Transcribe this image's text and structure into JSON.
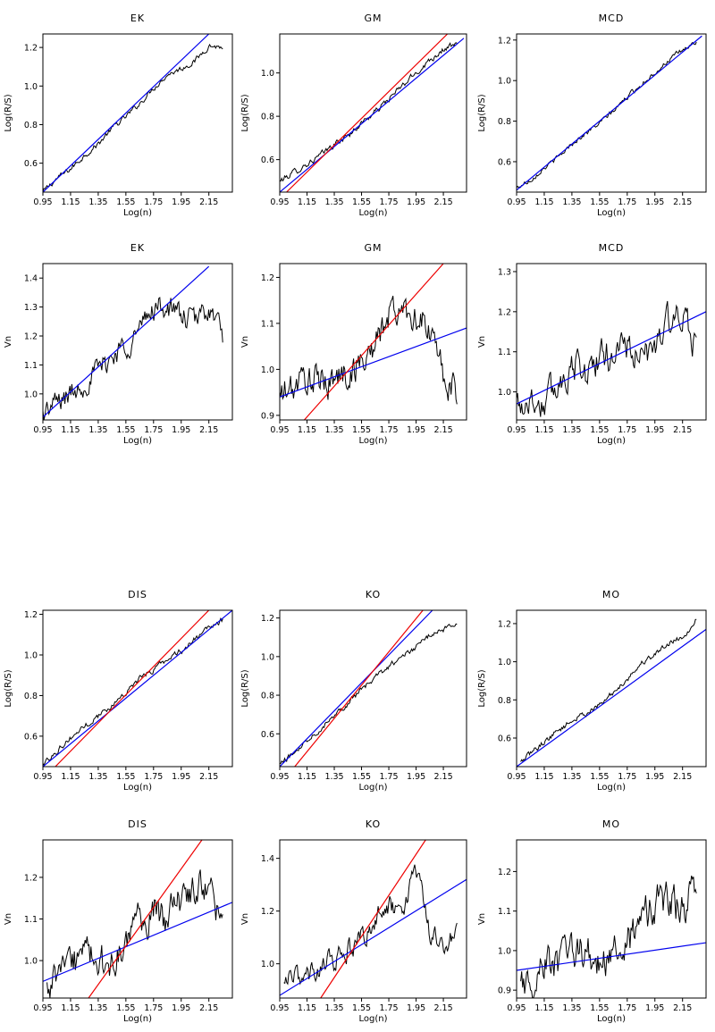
{
  "colors": {
    "fit_line": "#0000ee",
    "reference_line": "#ee0000",
    "data_line": "#000000"
  },
  "chart_data": [
    {
      "type": "line",
      "title": "EK",
      "xlabel": "Log(n)",
      "ylabel": "Log(R/S)",
      "xlim": [
        0.95,
        2.32
      ],
      "ylim": [
        0.45,
        1.27
      ],
      "xticks": [
        "0.95",
        "1.15",
        "1.35",
        "1.55",
        "1.75",
        "1.95",
        "2.15"
      ],
      "yticks": [
        "0.6",
        "0.8",
        "1.0",
        "1.2"
      ],
      "series": [
        {
          "role": "data",
          "x": [
            0.95,
            1.05,
            1.15,
            1.25,
            1.35,
            1.45,
            1.55,
            1.65,
            1.75,
            1.85,
            1.95,
            2.05,
            2.15,
            2.25
          ],
          "y": [
            0.45,
            0.52,
            0.57,
            0.64,
            0.7,
            0.78,
            0.84,
            0.91,
            0.99,
            1.06,
            1.09,
            1.13,
            1.21,
            1.2
          ],
          "noise": 0.012
        },
        {
          "role": "fit",
          "color": "blue",
          "x": [
            0.95,
            2.15
          ],
          "y": [
            0.45,
            1.27
          ]
        }
      ]
    },
    {
      "type": "line",
      "title": "GM",
      "xlabel": "Log(n)",
      "ylabel": "Log(R/S)",
      "xlim": [
        0.95,
        2.32
      ],
      "ylim": [
        0.45,
        1.18
      ],
      "xticks": [
        "0.95",
        "1.15",
        "1.35",
        "1.55",
        "1.75",
        "1.95",
        "2.15"
      ],
      "yticks": [
        "0.6",
        "0.8",
        "1.0"
      ],
      "series": [
        {
          "role": "data",
          "x": [
            0.95,
            1.05,
            1.15,
            1.25,
            1.35,
            1.45,
            1.55,
            1.65,
            1.75,
            1.85,
            1.95,
            2.05,
            2.15,
            2.25
          ],
          "y": [
            0.5,
            0.54,
            0.58,
            0.62,
            0.67,
            0.71,
            0.77,
            0.82,
            0.88,
            0.94,
            1.0,
            1.06,
            1.11,
            1.13
          ],
          "noise": 0.012
        },
        {
          "role": "fit",
          "color": "blue",
          "x": [
            0.95,
            2.3
          ],
          "y": [
            0.45,
            1.16
          ]
        },
        {
          "role": "reference",
          "color": "red",
          "x": [
            1.0,
            2.18
          ],
          "y": [
            0.45,
            1.18
          ]
        }
      ]
    },
    {
      "type": "line",
      "title": "MCD",
      "xlabel": "Log(n)",
      "ylabel": "Log(R/S)",
      "xlim": [
        0.95,
        2.32
      ],
      "ylim": [
        0.45,
        1.23
      ],
      "xticks": [
        "0.95",
        "1.15",
        "1.35",
        "1.55",
        "1.75",
        "1.95",
        "2.15"
      ],
      "yticks": [
        "0.6",
        "0.8",
        "1.0",
        "1.2"
      ],
      "series": [
        {
          "role": "data",
          "x": [
            0.95,
            1.05,
            1.15,
            1.25,
            1.35,
            1.45,
            1.55,
            1.65,
            1.75,
            1.85,
            1.95,
            2.05,
            2.15,
            2.25
          ],
          "y": [
            0.47,
            0.51,
            0.57,
            0.62,
            0.69,
            0.74,
            0.79,
            0.85,
            0.92,
            0.98,
            1.04,
            1.1,
            1.15,
            1.19
          ],
          "noise": 0.01
        },
        {
          "role": "fit",
          "color": "blue",
          "x": [
            0.95,
            2.29
          ],
          "y": [
            0.46,
            1.22
          ]
        }
      ]
    },
    {
      "type": "line",
      "title": "EK",
      "xlabel": "Log(n)",
      "ylabel": "Vn",
      "xlim": [
        0.95,
        2.32
      ],
      "ylim": [
        0.91,
        1.45
      ],
      "xticks": [
        "0.95",
        "1.15",
        "1.35",
        "1.55",
        "1.75",
        "1.95",
        "2.15"
      ],
      "yticks": [
        "1.0",
        "1.1",
        "1.2",
        "1.3",
        "1.4"
      ],
      "series": [
        {
          "role": "data",
          "x": [
            0.95,
            1.05,
            1.15,
            1.25,
            1.35,
            1.45,
            1.55,
            1.65,
            1.75,
            1.85,
            1.95,
            2.05,
            2.15,
            2.25
          ],
          "y": [
            0.93,
            0.97,
            1.0,
            1.04,
            1.08,
            1.13,
            1.17,
            1.22,
            1.3,
            1.3,
            1.27,
            1.25,
            1.3,
            1.2
          ],
          "noise": 0.035
        },
        {
          "role": "fit",
          "color": "blue",
          "x": [
            0.95,
            2.15
          ],
          "y": [
            0.92,
            1.44
          ]
        }
      ]
    },
    {
      "type": "line",
      "title": "GM",
      "xlabel": "Log(n)",
      "ylabel": "Vn",
      "xlim": [
        0.95,
        2.32
      ],
      "ylim": [
        0.89,
        1.23
      ],
      "xticks": [
        "0.95",
        "1.15",
        "1.35",
        "1.55",
        "1.75",
        "1.95",
        "2.15"
      ],
      "yticks": [
        "0.9",
        "1.0",
        "1.1",
        "1.2"
      ],
      "series": [
        {
          "role": "data",
          "x": [
            0.95,
            1.05,
            1.15,
            1.25,
            1.35,
            1.45,
            1.55,
            1.65,
            1.75,
            1.85,
            1.95,
            2.05,
            2.15,
            2.25
          ],
          "y": [
            0.94,
            0.96,
            0.98,
            0.97,
            0.98,
            0.99,
            1.02,
            1.05,
            1.12,
            1.13,
            1.12,
            1.08,
            0.99,
            0.94
          ],
          "noise": 0.03
        },
        {
          "role": "fit",
          "color": "blue",
          "x": [
            0.95,
            2.32
          ],
          "y": [
            0.94,
            1.09
          ]
        },
        {
          "role": "reference",
          "color": "red",
          "x": [
            1.13,
            2.15
          ],
          "y": [
            0.89,
            1.23
          ]
        }
      ]
    },
    {
      "type": "line",
      "title": "MCD",
      "xlabel": "Log(n)",
      "ylabel": "Vn",
      "xlim": [
        0.95,
        2.32
      ],
      "ylim": [
        0.93,
        1.32
      ],
      "xticks": [
        "0.95",
        "1.15",
        "1.35",
        "1.55",
        "1.75",
        "1.95",
        "2.15"
      ],
      "yticks": [
        "1.0",
        "1.1",
        "1.2",
        "1.3"
      ],
      "series": [
        {
          "role": "data",
          "x": [
            0.95,
            1.05,
            1.15,
            1.25,
            1.35,
            1.45,
            1.55,
            1.65,
            1.75,
            1.85,
            1.95,
            2.05,
            2.15,
            2.25
          ],
          "y": [
            0.97,
            0.98,
            0.97,
            1.02,
            1.07,
            1.05,
            1.08,
            1.1,
            1.12,
            1.07,
            1.12,
            1.18,
            1.17,
            1.12
          ],
          "noise": 0.035
        },
        {
          "role": "fit",
          "color": "blue",
          "x": [
            0.95,
            2.32
          ],
          "y": [
            0.97,
            1.2
          ]
        }
      ]
    },
    {
      "type": "line",
      "title": "DIS",
      "xlabel": "Log(n)",
      "ylabel": "Log(R/S)",
      "xlim": [
        0.95,
        2.32
      ],
      "ylim": [
        0.45,
        1.22
      ],
      "xticks": [
        "0.95",
        "1.15",
        "1.35",
        "1.55",
        "1.75",
        "1.95",
        "2.15"
      ],
      "yticks": [
        "0.6",
        "0.8",
        "1.0",
        "1.2"
      ],
      "series": [
        {
          "role": "data",
          "x": [
            0.95,
            1.05,
            1.15,
            1.25,
            1.35,
            1.45,
            1.55,
            1.65,
            1.75,
            1.85,
            1.95,
            2.05,
            2.15,
            2.25
          ],
          "y": [
            0.46,
            0.53,
            0.59,
            0.65,
            0.7,
            0.75,
            0.82,
            0.88,
            0.93,
            0.98,
            1.02,
            1.08,
            1.13,
            1.17
          ],
          "noise": 0.012
        },
        {
          "role": "fit",
          "color": "blue",
          "x": [
            0.95,
            2.32
          ],
          "y": [
            0.45,
            1.22
          ]
        },
        {
          "role": "reference",
          "color": "red",
          "x": [
            1.04,
            2.15
          ],
          "y": [
            0.45,
            1.22
          ]
        }
      ]
    },
    {
      "type": "line",
      "title": "KO",
      "xlabel": "Log(n)",
      "ylabel": "Log(R/S)",
      "xlim": [
        0.95,
        2.32
      ],
      "ylim": [
        0.43,
        1.24
      ],
      "xticks": [
        "0.95",
        "1.15",
        "1.35",
        "1.55",
        "1.75",
        "1.95",
        "2.15"
      ],
      "yticks": [
        "0.6",
        "0.8",
        "1.0",
        "1.2"
      ],
      "series": [
        {
          "role": "data",
          "x": [
            0.95,
            1.05,
            1.15,
            1.25,
            1.35,
            1.45,
            1.55,
            1.65,
            1.75,
            1.85,
            1.95,
            2.05,
            2.15,
            2.25
          ],
          "y": [
            0.44,
            0.5,
            0.57,
            0.63,
            0.7,
            0.76,
            0.83,
            0.89,
            0.95,
            1.0,
            1.05,
            1.11,
            1.14,
            1.18
          ],
          "noise": 0.012
        },
        {
          "role": "fit",
          "color": "blue",
          "x": [
            0.95,
            2.07
          ],
          "y": [
            0.43,
            1.24
          ]
        },
        {
          "role": "reference",
          "color": "red",
          "x": [
            1.06,
            2.0
          ],
          "y": [
            0.43,
            1.24
          ]
        }
      ]
    },
    {
      "type": "line",
      "title": "MO",
      "xlabel": "Log(n)",
      "ylabel": "Log(R/S)",
      "xlim": [
        0.95,
        2.32
      ],
      "ylim": [
        0.45,
        1.27
      ],
      "xticks": [
        "0.95",
        "1.15",
        "1.35",
        "1.55",
        "1.75",
        "1.95",
        "2.15"
      ],
      "yticks": [
        "0.6",
        "0.8",
        "1.0",
        "1.2"
      ],
      "series": [
        {
          "role": "data",
          "x": [
            0.98,
            1.05,
            1.15,
            1.25,
            1.35,
            1.45,
            1.55,
            1.65,
            1.75,
            1.85,
            1.95,
            2.05,
            2.15,
            2.25
          ],
          "y": [
            0.47,
            0.52,
            0.58,
            0.64,
            0.69,
            0.73,
            0.77,
            0.84,
            0.91,
            0.99,
            1.04,
            1.1,
            1.13,
            1.22
          ],
          "noise": 0.012
        },
        {
          "role": "fit",
          "color": "blue",
          "x": [
            0.95,
            2.32
          ],
          "y": [
            0.45,
            1.17
          ]
        }
      ]
    },
    {
      "type": "line",
      "title": "DIS",
      "xlabel": "Log(n)",
      "ylabel": "Vn",
      "xlim": [
        0.95,
        2.32
      ],
      "ylim": [
        0.91,
        1.29
      ],
      "xticks": [
        "0.95",
        "1.15",
        "1.35",
        "1.55",
        "1.75",
        "1.95",
        "2.15"
      ],
      "yticks": [
        "1.0",
        "1.1",
        "1.2"
      ],
      "series": [
        {
          "role": "data",
          "x": [
            0.98,
            1.05,
            1.15,
            1.25,
            1.35,
            1.45,
            1.55,
            1.65,
            1.75,
            1.85,
            1.95,
            2.05,
            2.15,
            2.25
          ],
          "y": [
            0.93,
            0.96,
            0.99,
            1.01,
            1.0,
            0.98,
            1.04,
            1.09,
            1.12,
            1.1,
            1.14,
            1.18,
            1.16,
            1.1
          ],
          "noise": 0.035
        },
        {
          "role": "fit",
          "color": "blue",
          "x": [
            0.95,
            2.32
          ],
          "y": [
            0.95,
            1.14
          ]
        },
        {
          "role": "reference",
          "color": "red",
          "x": [
            1.28,
            2.1
          ],
          "y": [
            0.91,
            1.29
          ]
        }
      ]
    },
    {
      "type": "line",
      "title": "KO",
      "xlabel": "Log(n)",
      "ylabel": "Vn",
      "xlim": [
        0.95,
        2.32
      ],
      "ylim": [
        0.87,
        1.47
      ],
      "xticks": [
        "0.95",
        "1.15",
        "1.35",
        "1.55",
        "1.75",
        "1.95",
        "2.15"
      ],
      "yticks": [
        "1.0",
        "1.2",
        "1.4"
      ],
      "series": [
        {
          "role": "data",
          "x": [
            0.98,
            1.05,
            1.15,
            1.25,
            1.35,
            1.45,
            1.55,
            1.65,
            1.75,
            1.85,
            1.95,
            2.05,
            2.15,
            2.25
          ],
          "y": [
            0.91,
            0.94,
            0.96,
            0.98,
            1.02,
            1.05,
            1.1,
            1.17,
            1.22,
            1.18,
            1.35,
            1.12,
            1.08,
            1.1
          ],
          "noise": 0.035
        },
        {
          "role": "fit",
          "color": "blue",
          "x": [
            0.95,
            2.32
          ],
          "y": [
            0.88,
            1.32
          ]
        },
        {
          "role": "reference",
          "color": "red",
          "x": [
            1.25,
            2.02
          ],
          "y": [
            0.87,
            1.47
          ]
        }
      ]
    },
    {
      "type": "line",
      "title": "MO",
      "xlabel": "Log(n)",
      "ylabel": "Vn",
      "xlim": [
        0.95,
        2.32
      ],
      "ylim": [
        0.88,
        1.28
      ],
      "xticks": [
        "0.95",
        "1.15",
        "1.35",
        "1.55",
        "1.75",
        "1.95",
        "2.15"
      ],
      "yticks": [
        "0.9",
        "1.0",
        "1.1",
        "1.2"
      ],
      "series": [
        {
          "role": "data",
          "x": [
            0.98,
            1.05,
            1.15,
            1.25,
            1.35,
            1.45,
            1.55,
            1.65,
            1.75,
            1.85,
            1.95,
            2.05,
            2.15,
            2.25
          ],
          "y": [
            0.9,
            0.93,
            0.97,
            0.96,
            0.99,
            1.0,
            0.97,
            0.98,
            1.02,
            1.07,
            1.12,
            1.13,
            1.1,
            1.18
          ],
          "noise": 0.04
        },
        {
          "role": "fit",
          "color": "blue",
          "x": [
            0.95,
            2.32
          ],
          "y": [
            0.95,
            1.02
          ]
        }
      ]
    }
  ]
}
